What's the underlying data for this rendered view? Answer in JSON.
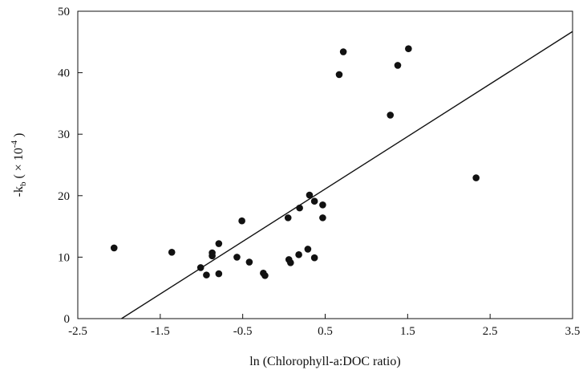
{
  "chart_data": {
    "type": "scatter",
    "title": "",
    "xlabel": "ln (Chlorophyll-a:DOC ratio)",
    "ylabel": {
      "main": "-k",
      "subscript": "b",
      "prefix": " ( × 10",
      "superscript": "-4",
      "suffix": " )"
    },
    "xlim": [
      -2.5,
      3.5
    ],
    "ylim": [
      0,
      50
    ],
    "xticks": [
      -2.5,
      -1.5,
      -0.5,
      0.5,
      1.5,
      2.5,
      3.5
    ],
    "xtick_labels": [
      "-2.5",
      "-1.5",
      "-0.5",
      "0.5",
      "1.5",
      "2.5",
      "3.5"
    ],
    "yticks": [
      0,
      10,
      20,
      30,
      40,
      50
    ],
    "ytick_labels": [
      "0",
      "10",
      "20",
      "30",
      "40",
      "50"
    ],
    "grid": false,
    "legend": "none",
    "colors": {
      "points": "#111111",
      "line": "#111111",
      "axes": "#111111"
    },
    "series": [
      {
        "points": [
          {
            "x": -2.06,
            "y": 11.5
          },
          {
            "x": -1.36,
            "y": 10.8
          },
          {
            "x": -1.01,
            "y": 8.3
          },
          {
            "x": -0.94,
            "y": 7.1
          },
          {
            "x": -0.87,
            "y": 10.7
          },
          {
            "x": -0.87,
            "y": 10.2
          },
          {
            "x": -0.79,
            "y": 12.2
          },
          {
            "x": -0.79,
            "y": 7.3
          },
          {
            "x": -0.57,
            "y": 10.0
          },
          {
            "x": -0.51,
            "y": 15.9
          },
          {
            "x": -0.42,
            "y": 9.2
          },
          {
            "x": -0.25,
            "y": 7.4
          },
          {
            "x": -0.23,
            "y": 7.0
          },
          {
            "x": 0.05,
            "y": 16.4
          },
          {
            "x": 0.06,
            "y": 9.6
          },
          {
            "x": 0.08,
            "y": 9.1
          },
          {
            "x": 0.18,
            "y": 10.4
          },
          {
            "x": 0.19,
            "y": 18.0
          },
          {
            "x": 0.29,
            "y": 11.3
          },
          {
            "x": 0.31,
            "y": 20.1
          },
          {
            "x": 0.37,
            "y": 19.1
          },
          {
            "x": 0.37,
            "y": 9.9
          },
          {
            "x": 0.47,
            "y": 18.5
          },
          {
            "x": 0.47,
            "y": 16.4
          },
          {
            "x": 0.67,
            "y": 39.7
          },
          {
            "x": 0.72,
            "y": 43.4
          },
          {
            "x": 1.29,
            "y": 33.1
          },
          {
            "x": 1.38,
            "y": 41.2
          },
          {
            "x": 1.51,
            "y": 43.9
          },
          {
            "x": 2.33,
            "y": 22.9
          }
        ]
      }
    ],
    "fit_line": {
      "type": "linear",
      "x": [
        -1.97,
        3.5
      ],
      "y": [
        0,
        46.7
      ]
    }
  }
}
